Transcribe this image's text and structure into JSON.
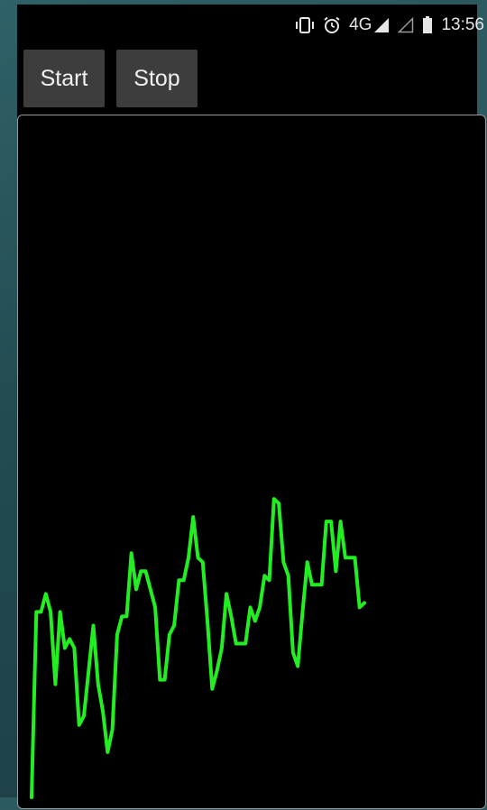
{
  "status_bar": {
    "time": "13:56",
    "network": "4G",
    "icons": [
      "vibrate-icon",
      "alarm-icon",
      "signal-icon",
      "signal-empty-icon",
      "battery-icon"
    ]
  },
  "toolbar": {
    "start_label": "Start",
    "stop_label": "Stop"
  },
  "colors": {
    "line": "#22ee22",
    "background": "#000000",
    "button": "#3d3d3d",
    "panel_border": "#9a9a9a"
  },
  "chart_data": {
    "type": "line",
    "title": "",
    "xlabel": "",
    "ylabel": "",
    "grid": false,
    "legend": "none",
    "ylim": [
      0,
      100
    ],
    "series": [
      {
        "values": [
          0,
          41,
          41,
          45,
          41,
          25,
          41,
          33,
          35,
          33,
          16,
          18,
          28,
          38,
          25,
          19,
          10,
          15,
          36,
          40,
          40,
          54,
          46,
          50,
          50,
          46,
          42,
          26,
          26,
          36,
          38,
          48,
          48,
          53,
          62,
          53,
          52,
          39,
          24,
          28,
          33,
          45,
          40,
          34,
          34,
          34,
          42,
          39,
          42,
          49,
          48,
          66,
          65,
          52,
          49,
          32,
          29,
          41,
          52,
          47,
          47,
          47,
          61,
          61,
          50,
          61,
          53,
          53,
          53,
          42,
          43
        ]
      }
    ]
  }
}
